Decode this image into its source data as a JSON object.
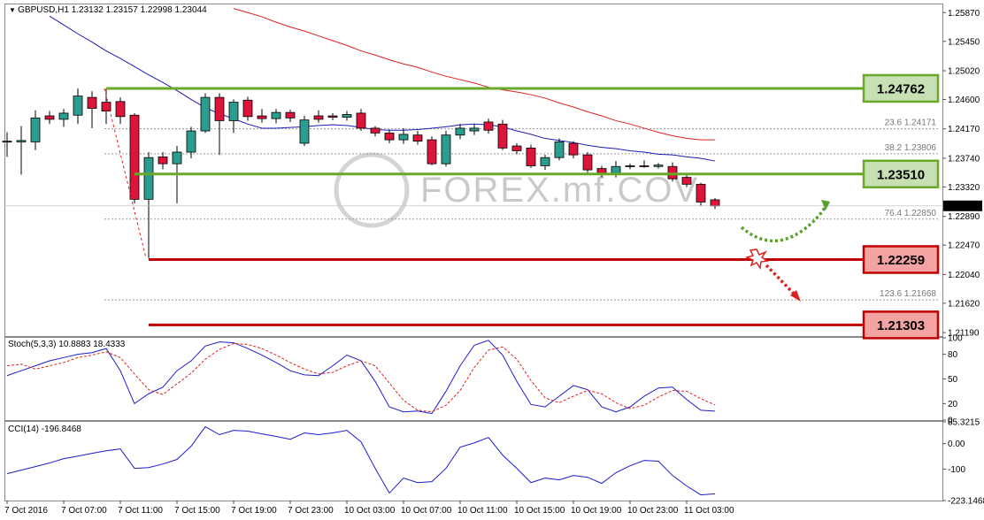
{
  "chart_data": [
    {
      "type": "candlestick",
      "title": "GBPUSD,H1",
      "open": [
        1.2398,
        1.2398,
        1.2398,
        1.2436,
        1.2431,
        1.2437,
        1.2463,
        1.2456,
        1.2457,
        1.2437,
        1.2314,
        1.2376,
        1.2366,
        1.2383,
        1.2414,
        1.2463,
        1.2429,
        1.2459,
        1.2436,
        1.2432,
        1.2441,
        1.2396,
        1.2436,
        1.2436,
        1.2434,
        1.244,
        1.2418,
        1.2411,
        1.2401,
        1.2408,
        1.2401,
        1.2366,
        1.2408,
        1.2414,
        1.2427,
        1.2424,
        1.2392,
        1.2389,
        1.2363,
        1.2375,
        1.2396,
        1.2379,
        1.2359,
        1.235,
        1.2362,
        1.2363,
        1.2362,
        1.2362,
        1.2346,
        1.2336,
        1.23132
      ],
      "high": [
        1.2412,
        1.2421,
        1.2444,
        1.2443,
        1.2446,
        1.2476,
        1.2472,
        1.2476,
        1.2463,
        1.244,
        1.2383,
        1.2383,
        1.2392,
        1.242,
        1.2469,
        1.2469,
        1.246,
        1.2464,
        1.2446,
        1.2446,
        1.2445,
        1.2436,
        1.2444,
        1.244,
        1.2443,
        1.2446,
        1.2421,
        1.2416,
        1.2418,
        1.2414,
        1.2406,
        1.2414,
        1.2424,
        1.2424,
        1.2432,
        1.243,
        1.2396,
        1.2394,
        1.2379,
        1.2403,
        1.2399,
        1.2383,
        1.2363,
        1.237,
        1.2366,
        1.2371,
        1.2367,
        1.2368,
        1.235,
        1.2338,
        1.23157
      ],
      "low": [
        1.2376,
        1.235,
        1.2386,
        1.2424,
        1.242,
        1.2424,
        1.2418,
        1.2424,
        1.2424,
        1.2308,
        1.2228,
        1.2358,
        1.2308,
        1.2374,
        1.2411,
        1.2379,
        1.2411,
        1.2429,
        1.2426,
        1.2425,
        1.2427,
        1.2392,
        1.2426,
        1.243,
        1.2429,
        1.2414,
        1.2406,
        1.2396,
        1.2395,
        1.2394,
        1.2364,
        1.2362,
        1.2402,
        1.2408,
        1.241,
        1.2386,
        1.238,
        1.236,
        1.2357,
        1.2371,
        1.2374,
        1.2353,
        1.2346,
        1.2346,
        1.2358,
        1.236,
        1.2359,
        1.234,
        1.2332,
        1.2305,
        1.22998
      ],
      "close": [
        1.2399,
        1.24,
        1.2433,
        1.2431,
        1.244,
        1.2465,
        1.2447,
        1.2443,
        1.2435,
        1.2314,
        1.2375,
        1.2366,
        1.2383,
        1.2414,
        1.2463,
        1.2429,
        1.2456,
        1.2435,
        1.2432,
        1.2441,
        1.2433,
        1.243,
        1.2431,
        1.2434,
        1.2438,
        1.2418,
        1.2411,
        1.2401,
        1.2409,
        1.2399,
        1.2366,
        1.2408,
        1.2418,
        1.2418,
        1.2415,
        1.2389,
        1.2385,
        1.2363,
        1.2375,
        1.2398,
        1.2379,
        1.2357,
        1.235,
        1.2362,
        1.2363,
        1.2362,
        1.2364,
        1.2344,
        1.2336,
        1.231,
        1.23044
      ],
      "up_color": "#2a9d8f",
      "down_color": "#dc143c",
      "overlays": [
        {
          "color": "#1c1cb4",
          "values": [
            null,
            null,
            null,
            1.2582,
            1.2569,
            1.2556,
            1.2544,
            1.2531,
            1.252,
            1.2508,
            1.2496,
            1.2485,
            1.2473,
            1.246,
            1.2448,
            1.2439,
            1.2432,
            1.2424,
            1.2418,
            1.2418,
            1.2419,
            1.242,
            1.2422,
            1.2423,
            1.2422,
            1.2419,
            1.2416,
            1.2415,
            1.2415,
            1.2416,
            1.2418,
            1.242,
            1.2423,
            1.2424,
            1.2423,
            1.242,
            1.2414,
            1.2409,
            1.2403,
            1.24,
            1.2397,
            1.2393,
            1.239,
            1.2388,
            1.2385,
            1.2383,
            1.238,
            1.2379,
            1.2376,
            1.2374,
            1.237
          ]
        },
        {
          "color": "#e0201c",
          "values": [
            null,
            null,
            null,
            null,
            null,
            null,
            null,
            null,
            null,
            null,
            null,
            null,
            null,
            null,
            null,
            null,
            1.2593,
            1.2587,
            1.2581,
            1.2573,
            1.2566,
            1.256,
            1.2553,
            1.2546,
            1.2539,
            1.2531,
            1.2525,
            1.2518,
            1.2512,
            1.2507,
            1.25,
            1.2494,
            1.2489,
            1.2484,
            1.2478,
            1.2474,
            1.2471,
            1.2467,
            1.2462,
            1.2455,
            1.2449,
            1.2442,
            1.2436,
            1.2429,
            1.2424,
            1.2418,
            1.2412,
            1.2407,
            1.2403,
            1.2401,
            1.2401
          ]
        }
      ],
      "levels": [
        {
          "value": 1.24762,
          "from_index": 7,
          "color": "#6aa82a",
          "fill": "#c6e0b4"
        },
        {
          "value": 1.2351,
          "label": "1.23510",
          "from_index": 9,
          "color": "#6aa82a",
          "fill": "#c6e0b4"
        },
        {
          "value": 1.22259,
          "from_index": 10,
          "color": "#c00000",
          "fill": "#f4a3a3"
        },
        {
          "value": 1.21303,
          "from_index": 10,
          "color": "#c00000",
          "fill": "#f4a3a3"
        }
      ],
      "fib_levels": [
        {
          "ratio": 23.6,
          "price": 1.24171
        },
        {
          "ratio": 38.2,
          "price": 1.23806
        },
        {
          "ratio": 76.4,
          "price": 1.2285,
          "price_label": "1.22850"
        },
        {
          "ratio": 123.6,
          "price": 1.21668
        }
      ],
      "watermark": "FOREX.mf.COV",
      "ylim": [
        1.2114,
        1.2599
      ],
      "yticks": [
        {
          "value": 1.2587,
          "label": "1.25870"
        },
        {
          "value": 1.2545,
          "label": "1.25450"
        },
        {
          "value": 1.2502,
          "label": "1.25020"
        },
        {
          "value": 1.246,
          "label": "1.24600"
        },
        {
          "value": 1.2417,
          "label": "1.24170"
        },
        {
          "value": 1.2374,
          "label": "1.23740"
        },
        {
          "value": 1.2332,
          "label": "1.23320"
        },
        {
          "value": 1.2289,
          "label": "1.22890"
        },
        {
          "value": 1.2247,
          "label": "1.22470"
        },
        {
          "value": 1.2204,
          "label": "1.22040"
        },
        {
          "value": 1.2162,
          "label": "1.21620"
        },
        {
          "value": 1.2119,
          "label": "1.21190"
        }
      ],
      "xticks": [
        {
          "value": 0,
          "label": "7 Oct 2016"
        },
        {
          "value": 4,
          "label": "7 Oct 07:00"
        },
        {
          "value": 8,
          "label": "7 Oct 11:00"
        },
        {
          "value": 12,
          "label": "7 Oct 15:00"
        },
        {
          "value": 16,
          "label": "7 Oct 19:00"
        },
        {
          "value": 20,
          "label": "7 Oct 23:00"
        },
        {
          "value": 24,
          "label": "10 Oct 03:00"
        },
        {
          "value": 28,
          "label": "10 Oct 07:00"
        },
        {
          "value": 32,
          "label": "10 Oct 11:00"
        },
        {
          "value": 36,
          "label": "10 Oct 15:00"
        },
        {
          "value": 40,
          "label": "10 Oct 19:00"
        },
        {
          "value": 44,
          "label": "10 Oct 23:00"
        },
        {
          "value": 48,
          "label": "11 Oct 03:00"
        }
      ]
    },
    {
      "type": "line",
      "title": "Stoch(5,3,3)",
      "series": [
        {
          "color": "#1c1cd0",
          "dash": false,
          "values": [
            54,
            60,
            66,
            72,
            76,
            80,
            82,
            87,
            60,
            20,
            32,
            40,
            60,
            72,
            90,
            95,
            94,
            87,
            79,
            70,
            60,
            55,
            54,
            66,
            79,
            72,
            47,
            16,
            10,
            11,
            8,
            35,
            66,
            91,
            97,
            79,
            47,
            19,
            16,
            29,
            42,
            37,
            16,
            10,
            16,
            29,
            39,
            40,
            25,
            12,
            10.8883
          ]
        },
        {
          "color": "#e0201c",
          "dash": true,
          "values": [
            66,
            68,
            62,
            66,
            70,
            76,
            79,
            83,
            76,
            56,
            37,
            31,
            44,
            57,
            74,
            86,
            93,
            92,
            87,
            79,
            70,
            62,
            56,
            58,
            66,
            72,
            66,
            45,
            24,
            12,
            10,
            18,
            36,
            64,
            85,
            89,
            74,
            48,
            27,
            21,
            29,
            36,
            32,
            21,
            14,
            18,
            28,
            36,
            35,
            26,
            18.4333
          ]
        }
      ],
      "ylim": [
        0,
        100
      ],
      "yticks": [
        100,
        80,
        50,
        20,
        0
      ]
    },
    {
      "type": "line",
      "title": "CCI(14)",
      "series": [
        {
          "color": "#1c1cd0",
          "dash": false,
          "values": [
            -118,
            -104,
            -90,
            -76,
            -59,
            -49,
            -38,
            -28,
            -21,
            -97,
            -94,
            -80,
            -62,
            -10,
            66,
            35,
            52,
            49,
            38,
            28,
            17,
            42,
            35,
            42,
            52,
            7,
            -97,
            -194,
            -135,
            -153,
            -149,
            -97,
            -14,
            3,
            24,
            -45,
            -97,
            -153,
            -135,
            -142,
            -125,
            -132,
            -156,
            -114,
            -87,
            -66,
            -69,
            -125,
            -166,
            -201,
            -196.8468
          ]
        }
      ],
      "ylim": [
        -223.1468,
        85.3215
      ],
      "yticks": [
        85.3215,
        {
          "value": 0,
          "label": "0.00"
        },
        -100,
        -223.1468
      ]
    }
  ]
}
